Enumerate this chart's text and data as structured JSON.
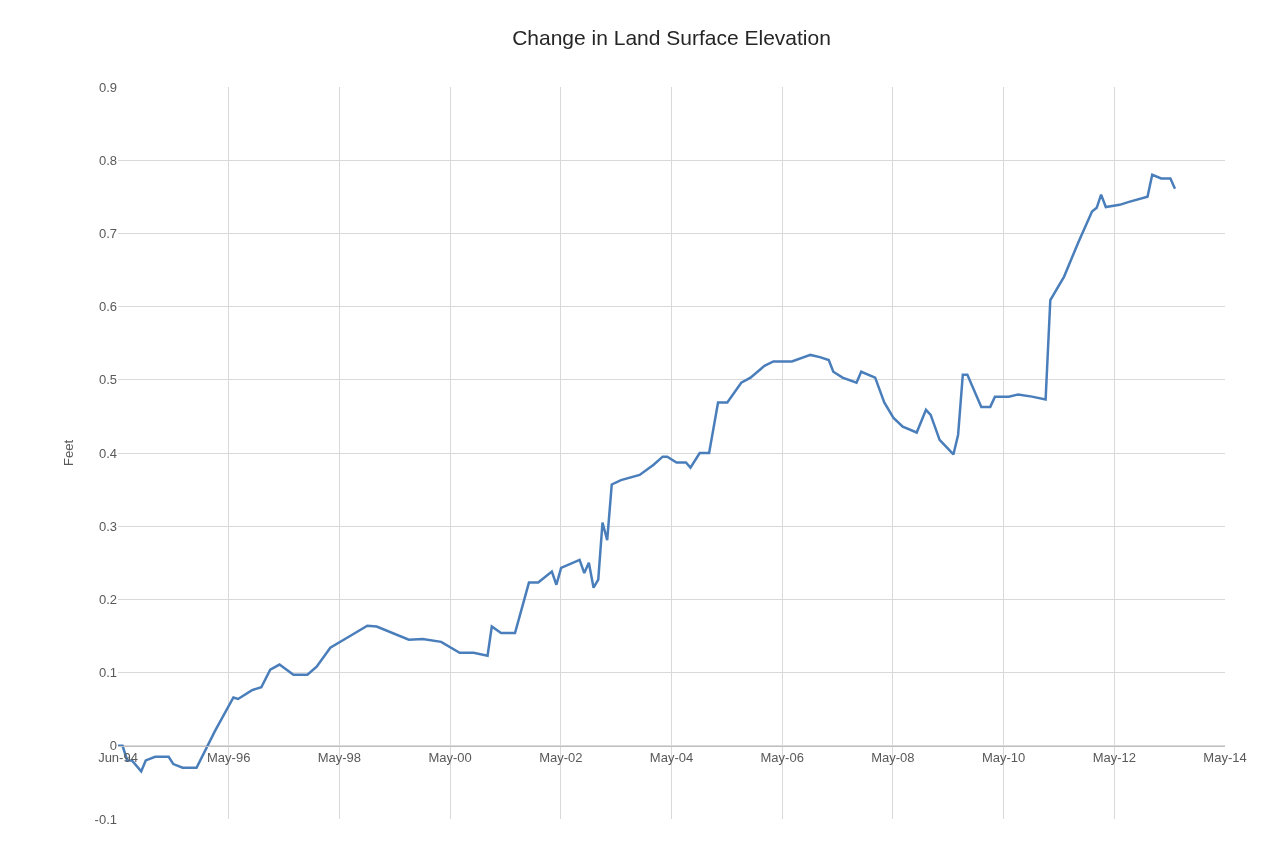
{
  "chart_data": {
    "type": "line",
    "title": "Change in Land Surface Elevation",
    "ylabel": "Feet",
    "x": [
      "1994-06",
      "1994-07",
      "1994-08",
      "1994-09",
      "1994-11",
      "1994-12",
      "1995-02",
      "1995-05",
      "1995-06",
      "1995-08",
      "1995-11",
      "1996-03",
      "1996-07",
      "1996-08",
      "1996-11",
      "1997-01",
      "1997-03",
      "1997-05",
      "1997-08",
      "1997-11",
      "1998-01",
      "1998-04",
      "1998-08",
      "1998-12",
      "1999-02",
      "1999-09",
      "1999-12",
      "2000-04",
      "2000-08",
      "2000-11",
      "2001-02",
      "2001-03",
      "2001-05",
      "2001-08",
      "2001-11",
      "2002-01",
      "2002-04",
      "2002-05",
      "2002-06",
      "2002-10",
      "2002-11",
      "2002-12",
      "2003-01",
      "2003-02",
      "2003-03",
      "2003-04",
      "2003-05",
      "2003-07",
      "2003-11",
      "2004-02",
      "2004-04",
      "2004-05",
      "2004-07",
      "2004-09",
      "2004-10",
      "2004-12",
      "2005-02",
      "2005-04",
      "2005-06",
      "2005-09",
      "2005-11",
      "2006-02",
      "2006-04",
      "2006-08",
      "2006-12",
      "2007-02",
      "2007-04",
      "2007-05",
      "2007-07",
      "2007-10",
      "2007-11",
      "2008-02",
      "2008-04",
      "2008-06",
      "2008-08",
      "2008-11",
      "2009-01",
      "2009-02",
      "2009-04",
      "2009-07",
      "2009-08",
      "2009-09",
      "2009-10",
      "2010-01",
      "2010-03",
      "2010-04",
      "2010-07",
      "2010-09",
      "2010-12",
      "2011-03",
      "2011-04",
      "2011-07",
      "2011-10",
      "2012-01",
      "2012-02",
      "2012-03",
      "2012-04",
      "2012-07",
      "2012-09",
      "2013-01",
      "2013-02",
      "2013-04",
      "2013-06",
      "2013-07"
    ],
    "series": [
      {
        "color": "#4a7ebb",
        "values": [
          0.0,
          0.0,
          -0.02,
          -0.02,
          -0.035,
          -0.02,
          -0.015,
          -0.015,
          -0.025,
          -0.03,
          -0.03,
          0.02,
          0.066,
          0.064,
          0.076,
          0.08,
          0.104,
          0.111,
          0.097,
          0.097,
          0.108,
          0.134,
          0.149,
          0.164,
          0.163,
          0.145,
          0.146,
          0.142,
          0.127,
          0.127,
          0.123,
          0.163,
          0.154,
          0.154,
          0.223,
          0.223,
          0.238,
          0.22,
          0.243,
          0.254,
          0.236,
          0.25,
          0.216,
          0.227,
          0.305,
          0.281,
          0.357,
          0.363,
          0.37,
          0.384,
          0.395,
          0.395,
          0.387,
          0.387,
          0.38,
          0.4,
          0.4,
          0.469,
          0.469,
          0.496,
          0.503,
          0.519,
          0.525,
          0.525,
          0.534,
          0.531,
          0.527,
          0.511,
          0.503,
          0.496,
          0.511,
          0.503,
          0.469,
          0.448,
          0.436,
          0.428,
          0.459,
          0.452,
          0.418,
          0.398,
          0.425,
          0.507,
          0.507,
          0.463,
          0.463,
          0.477,
          0.477,
          0.48,
          0.477,
          0.473,
          0.609,
          0.641,
          0.687,
          0.73,
          0.735,
          0.753,
          0.736,
          0.739,
          0.743,
          0.75,
          0.78,
          0.775,
          0.775,
          0.761
        ]
      }
    ],
    "xlim": [
      "1994-06-01",
      "2014-05-27"
    ],
    "xticks": [
      {
        "value": "1994-06-01",
        "label": "Jun-94"
      },
      {
        "value": "1996-05-31",
        "label": "May-96"
      },
      {
        "value": "1998-05-31",
        "label": "May-98"
      },
      {
        "value": "2000-05-30",
        "label": "May-00"
      },
      {
        "value": "2002-05-30",
        "label": "May-02"
      },
      {
        "value": "2004-05-29",
        "label": "May-04"
      },
      {
        "value": "2006-05-29",
        "label": "May-06"
      },
      {
        "value": "2008-05-28",
        "label": "May-08"
      },
      {
        "value": "2010-05-28",
        "label": "May-10"
      },
      {
        "value": "2012-05-27",
        "label": "May-12"
      },
      {
        "value": "2014-05-27",
        "label": "May-14"
      }
    ],
    "ylim": [
      -0.1,
      0.9
    ],
    "yticks": [
      -0.1,
      0,
      0.1,
      0.2,
      0.3,
      0.4,
      0.5,
      0.6,
      0.7,
      0.8,
      0.9
    ],
    "grid": true,
    "marker": "none",
    "line_style": "solid"
  }
}
